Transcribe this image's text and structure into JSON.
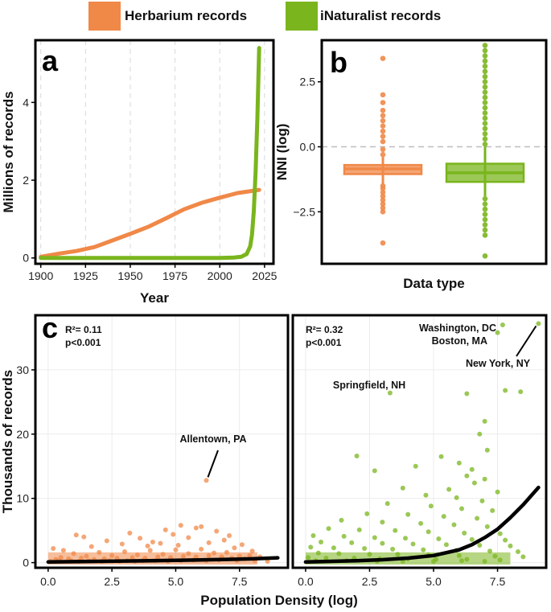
{
  "colors": {
    "herbarium": "#f08848",
    "inaturalist": "#7ab51d",
    "fit": "#000000",
    "grid": "#d9d9d9"
  },
  "legend": {
    "items": [
      {
        "label": "Herbarium records",
        "series": "herbarium"
      },
      {
        "label": "iNaturalist records",
        "series": "inaturalist"
      }
    ]
  },
  "chart_data": [
    {
      "panel": "a",
      "type": "line",
      "xlabel": "Year",
      "ylabel": "Millions of records",
      "xlim": [
        1897,
        2030
      ],
      "ylim": [
        -0.15,
        5.6
      ],
      "xticks": [
        1900,
        1925,
        1950,
        1975,
        2000,
        2025
      ],
      "yticks": [
        0,
        2,
        4
      ],
      "vgrid_dashed": [
        1900,
        1925,
        1950,
        1975,
        2000,
        2025
      ],
      "series": [
        {
          "name": "Herbarium records",
          "color_key": "herbarium",
          "x": [
            1900,
            1910,
            1920,
            1930,
            1940,
            1950,
            1960,
            1970,
            1980,
            1990,
            2000,
            2010,
            2022
          ],
          "y": [
            0.03,
            0.11,
            0.18,
            0.28,
            0.45,
            0.62,
            0.8,
            1.02,
            1.25,
            1.42,
            1.55,
            1.67,
            1.75
          ]
        },
        {
          "name": "iNaturalist records",
          "color_key": "inaturalist",
          "x": [
            1900,
            1950,
            2000,
            2008,
            2012,
            2015,
            2017,
            2018,
            2019,
            2020,
            2021,
            2022
          ],
          "y": [
            0,
            0,
            0,
            0.01,
            0.03,
            0.1,
            0.3,
            0.6,
            1.2,
            2.2,
            3.6,
            5.4
          ]
        }
      ]
    },
    {
      "panel": "b",
      "type": "box",
      "xlabel": "Data type",
      "ylabel": "NNI (log)",
      "ylim": [
        -4.5,
        4.1
      ],
      "yticks": [
        2.5,
        0.0,
        -2.5
      ],
      "ytick_labels": [
        "2.5",
        "0.0",
        "−2.5"
      ],
      "reference_line": 0,
      "boxes": [
        {
          "series": "herbarium",
          "q1": -1.05,
          "median": -0.85,
          "q3": -0.7,
          "whisker_low": -1.45,
          "whisker_high": -0.4,
          "outliers_low": [
            -1.5,
            -1.6,
            -1.75,
            -1.9,
            -2.05,
            -2.2,
            -2.35,
            -2.5,
            -3.7
          ],
          "outliers_high": [
            -0.3,
            -0.1,
            0.2,
            0.4,
            0.6,
            0.8,
            1.0,
            1.2,
            1.4,
            1.7,
            2.0,
            3.4
          ]
        },
        {
          "series": "inaturalist",
          "q1": -1.35,
          "median": -1.0,
          "q3": -0.65,
          "whisker_low": -1.9,
          "whisker_high": 0.0,
          "outliers_low": [
            -2.0,
            -2.2,
            -2.4,
            -2.6,
            -2.8,
            -3.0,
            -3.2,
            -3.4,
            -4.2
          ],
          "outliers_high": [
            0.1,
            0.3,
            0.5,
            0.7,
            0.9,
            1.1,
            1.3,
            1.5,
            1.7,
            1.9,
            2.1,
            2.3,
            2.5,
            2.7,
            2.9,
            3.1,
            3.3,
            3.5,
            3.7,
            3.9
          ]
        }
      ]
    },
    {
      "panel": "c",
      "type": "scatter",
      "series": "herbarium",
      "ylabel": "Thousands of records",
      "shared_xlabel": "Population Density (log)",
      "xlim": [
        -0.5,
        9.4
      ],
      "ylim": [
        -0.8,
        38.5
      ],
      "xticks": [
        0.0,
        2.5,
        5.0,
        7.5
      ],
      "xtick_labels": [
        "0.0",
        "2.5",
        "5.0",
        "7.5"
      ],
      "yticks": [
        0,
        10,
        20,
        30
      ],
      "stats": {
        "r2": "R²= 0.11",
        "p": "p<0.001"
      },
      "fit": {
        "x": [
          0,
          1,
          2,
          3,
          4,
          5,
          6,
          7,
          8,
          9
        ],
        "y": [
          0.1,
          0.15,
          0.2,
          0.25,
          0.3,
          0.35,
          0.42,
          0.5,
          0.6,
          0.75
        ]
      },
      "annotations": [
        {
          "label": "Allentown, PA",
          "x": 6.2,
          "y": 12.8
        }
      ],
      "points": [
        [
          6.2,
          12.8
        ],
        [
          1.1,
          4.3
        ],
        [
          1.4,
          4.0
        ],
        [
          3.2,
          4.6
        ],
        [
          4.6,
          5.1
        ],
        [
          5.2,
          5.8
        ],
        [
          5.8,
          5.4
        ],
        [
          6.0,
          5.6
        ],
        [
          6.6,
          4.9
        ],
        [
          7.1,
          4.2
        ],
        [
          2.3,
          3.4
        ],
        [
          3.6,
          3.8
        ],
        [
          4.1,
          3.2
        ],
        [
          4.9,
          4.4
        ],
        [
          5.5,
          3.9
        ],
        [
          6.9,
          3.5
        ],
        [
          7.6,
          2.8
        ],
        [
          8.0,
          1.8
        ],
        [
          0.2,
          2.2
        ],
        [
          0.6,
          1.9
        ],
        [
          1.7,
          2.5
        ],
        [
          2.9,
          2.9
        ],
        [
          3.9,
          2.6
        ],
        [
          4.4,
          3.0
        ],
        [
          5.1,
          2.7
        ],
        [
          6.3,
          3.1
        ],
        [
          7.3,
          2.3
        ],
        [
          1.0,
          1.4
        ],
        [
          2.0,
          1.6
        ],
        [
          3.0,
          1.7
        ],
        [
          4.0,
          1.9
        ],
        [
          5.0,
          2.0
        ],
        [
          6.0,
          2.1
        ],
        [
          7.0,
          1.6
        ],
        [
          7.9,
          1.1
        ],
        [
          8.3,
          0.9
        ],
        [
          0.5,
          0.8
        ],
        [
          1.5,
          1.0
        ],
        [
          2.5,
          1.1
        ],
        [
          3.5,
          1.2
        ],
        [
          4.5,
          1.3
        ],
        [
          5.5,
          1.4
        ],
        [
          6.5,
          1.5
        ],
        [
          7.5,
          1.0
        ],
        [
          0.3,
          0.5
        ],
        [
          0.8,
          0.6
        ],
        [
          1.3,
          0.7
        ],
        [
          1.8,
          0.5
        ],
        [
          2.2,
          0.6
        ],
        [
          2.7,
          0.7
        ],
        [
          3.3,
          0.8
        ],
        [
          3.8,
          0.7
        ],
        [
          4.3,
          0.9
        ],
        [
          4.8,
          0.8
        ],
        [
          5.3,
          1.0
        ],
        [
          5.8,
          0.9
        ],
        [
          6.3,
          1.1
        ],
        [
          6.8,
          0.9
        ],
        [
          7.2,
          0.7
        ],
        [
          7.7,
          0.6
        ],
        [
          0.1,
          0.2
        ],
        [
          0.4,
          0.3
        ],
        [
          0.9,
          0.3
        ],
        [
          1.2,
          0.2
        ],
        [
          1.6,
          0.3
        ],
        [
          2.1,
          0.2
        ],
        [
          2.4,
          0.3
        ],
        [
          2.8,
          0.2
        ],
        [
          3.1,
          0.3
        ],
        [
          3.4,
          0.2
        ],
        [
          3.7,
          0.3
        ],
        [
          4.2,
          0.3
        ],
        [
          4.7,
          0.2
        ],
        [
          5.2,
          0.3
        ],
        [
          5.7,
          0.4
        ],
        [
          6.2,
          0.3
        ],
        [
          6.7,
          0.4
        ],
        [
          7.4,
          0.3
        ],
        [
          8.1,
          0.3
        ],
        [
          8.6,
          0.2
        ]
      ]
    },
    {
      "panel": "c-right",
      "type": "scatter",
      "series": "inaturalist",
      "xlim": [
        -0.5,
        9.4
      ],
      "ylim": [
        -0.8,
        38.5
      ],
      "xticks": [
        0.0,
        2.5,
        5.0,
        7.5
      ],
      "xtick_labels": [
        "0.0",
        "2.5",
        "5.0",
        "7.5"
      ],
      "yticks": [
        0,
        10,
        20,
        30
      ],
      "stats": {
        "r2": "R²= 0.32",
        "p": "p<0.001"
      },
      "fit": {
        "x": [
          0,
          1,
          2,
          3,
          4,
          5,
          6,
          6.5,
          7,
          7.5,
          8,
          8.5,
          9.1
        ],
        "y": [
          0.1,
          0.2,
          0.3,
          0.45,
          0.7,
          1.1,
          2.0,
          2.8,
          3.9,
          5.2,
          7.0,
          9.0,
          11.7
        ]
      },
      "annotations": [
        {
          "label": "Washington, DC",
          "x": 7.7,
          "y": 37.0
        },
        {
          "label": "Boston, MA",
          "x": 7.5,
          "y": 35.8
        },
        {
          "label": "New York, NY",
          "x": 9.1,
          "y": 37.2
        },
        {
          "label": "Springfield, NH",
          "x": 3.3,
          "y": 26.4
        }
      ],
      "points": [
        [
          9.1,
          37.2
        ],
        [
          7.7,
          37.0
        ],
        [
          7.5,
          35.8
        ],
        [
          3.3,
          26.4
        ],
        [
          6.3,
          26.3
        ],
        [
          7.8,
          26.8
        ],
        [
          8.4,
          26.6
        ],
        [
          7.0,
          22.0
        ],
        [
          6.8,
          20.0
        ],
        [
          7.1,
          17.5
        ],
        [
          2.0,
          16.6
        ],
        [
          5.3,
          16.5
        ],
        [
          6.0,
          15.5
        ],
        [
          6.5,
          14.5
        ],
        [
          2.7,
          14.3
        ],
        [
          4.3,
          15.0
        ],
        [
          6.3,
          13.5
        ],
        [
          7.0,
          13.0
        ],
        [
          6.6,
          12.4
        ],
        [
          3.8,
          11.6
        ],
        [
          5.6,
          11.4
        ],
        [
          7.5,
          11.0
        ],
        [
          4.7,
          10.5
        ],
        [
          5.9,
          10.1
        ],
        [
          6.9,
          9.6
        ],
        [
          3.2,
          9.2
        ],
        [
          4.9,
          8.8
        ],
        [
          6.1,
          8.4
        ],
        [
          7.3,
          8.1
        ],
        [
          2.4,
          7.6
        ],
        [
          4.0,
          7.5
        ],
        [
          5.4,
          7.2
        ],
        [
          6.7,
          6.9
        ],
        [
          1.4,
          6.6
        ],
        [
          3.0,
          6.3
        ],
        [
          4.5,
          6.1
        ],
        [
          5.8,
          5.9
        ],
        [
          7.1,
          5.6
        ],
        [
          0.9,
          5.3
        ],
        [
          2.1,
          5.1
        ],
        [
          3.5,
          5.0
        ],
        [
          4.8,
          4.8
        ],
        [
          6.2,
          4.6
        ],
        [
          7.6,
          4.5
        ],
        [
          0.3,
          4.2
        ],
        [
          1.5,
          4.1
        ],
        [
          2.7,
          3.9
        ],
        [
          3.9,
          3.8
        ],
        [
          5.2,
          3.7
        ],
        [
          6.5,
          3.6
        ],
        [
          7.8,
          3.5
        ],
        [
          0.6,
          3.2
        ],
        [
          1.8,
          3.1
        ],
        [
          3.0,
          3.0
        ],
        [
          4.2,
          2.9
        ],
        [
          5.5,
          2.8
        ],
        [
          6.8,
          2.7
        ],
        [
          8.0,
          2.6
        ],
        [
          0.2,
          2.4
        ],
        [
          1.1,
          2.3
        ],
        [
          2.3,
          2.2
        ],
        [
          3.4,
          2.1
        ],
        [
          4.6,
          2.0
        ],
        [
          5.9,
          1.9
        ],
        [
          7.2,
          1.8
        ],
        [
          8.3,
          1.7
        ],
        [
          0.5,
          1.5
        ],
        [
          1.3,
          1.4
        ],
        [
          2.5,
          1.3
        ],
        [
          3.6,
          1.3
        ],
        [
          4.8,
          1.2
        ],
        [
          6.0,
          1.1
        ],
        [
          7.4,
          1.0
        ],
        [
          8.5,
          0.9
        ],
        [
          0.1,
          0.8
        ],
        [
          0.8,
          0.7
        ],
        [
          1.9,
          0.7
        ],
        [
          2.9,
          0.6
        ],
        [
          4.0,
          0.6
        ],
        [
          5.1,
          0.5
        ],
        [
          6.3,
          0.5
        ],
        [
          7.6,
          0.4
        ],
        [
          0.4,
          0.3
        ],
        [
          1.6,
          0.3
        ],
        [
          2.8,
          0.2
        ],
        [
          3.8,
          0.2
        ],
        [
          5.0,
          0.2
        ],
        [
          6.1,
          0.3
        ],
        [
          7.0,
          0.2
        ]
      ]
    }
  ]
}
